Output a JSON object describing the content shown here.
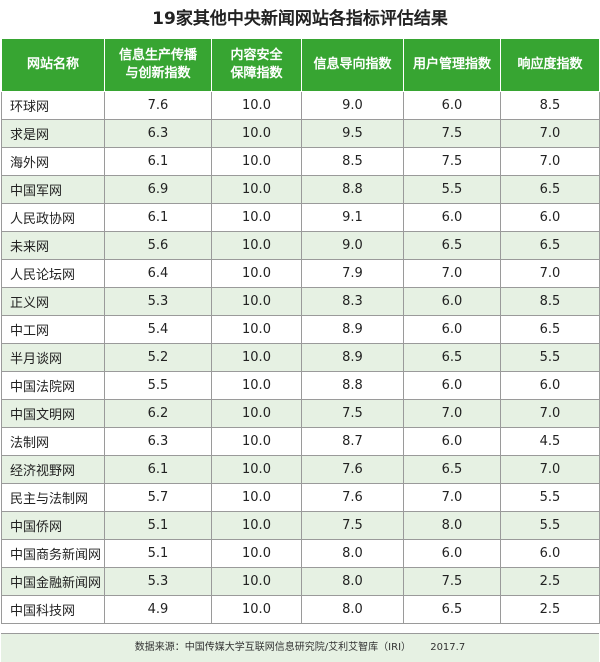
{
  "title": "19家其他中央新闻网站各指标评估结果",
  "columns": [
    "网站名称",
    "信息生产传播与创新指数",
    "内容安全保障指数",
    "信息导向指数",
    "用户管理指数",
    "响应度指数"
  ],
  "column_display": {
    "c0": [
      "网站名称"
    ],
    "c1": [
      "信息生产传播",
      "与创新指数"
    ],
    "c2": [
      "内容安全",
      "保障指数"
    ],
    "c3": [
      "信息导向指数"
    ],
    "c4": [
      "用户管理指数"
    ],
    "c5": [
      "响应度指数"
    ]
  },
  "rows": [
    [
      "环球网",
      "7.6",
      "10.0",
      "9.0",
      "6.0",
      "8.5"
    ],
    [
      "求是网",
      "6.3",
      "10.0",
      "9.5",
      "7.5",
      "7.0"
    ],
    [
      "海外网",
      "6.1",
      "10.0",
      "8.5",
      "7.5",
      "7.0"
    ],
    [
      "中国军网",
      "6.9",
      "10.0",
      "8.8",
      "5.5",
      "6.5"
    ],
    [
      "人民政协网",
      "6.1",
      "10.0",
      "9.1",
      "6.0",
      "6.0"
    ],
    [
      "未来网",
      "5.6",
      "10.0",
      "9.0",
      "6.5",
      "6.5"
    ],
    [
      "人民论坛网",
      "6.4",
      "10.0",
      "7.9",
      "7.0",
      "7.0"
    ],
    [
      "正义网",
      "5.3",
      "10.0",
      "8.3",
      "6.0",
      "8.5"
    ],
    [
      "中工网",
      "5.4",
      "10.0",
      "8.9",
      "6.0",
      "6.5"
    ],
    [
      "半月谈网",
      "5.2",
      "10.0",
      "8.9",
      "6.5",
      "5.5"
    ],
    [
      "中国法院网",
      "5.5",
      "10.0",
      "8.8",
      "6.0",
      "6.0"
    ],
    [
      "中国文明网",
      "6.2",
      "10.0",
      "7.5",
      "7.0",
      "7.0"
    ],
    [
      "法制网",
      "6.3",
      "10.0",
      "8.7",
      "6.0",
      "4.5"
    ],
    [
      "经济视野网",
      "6.1",
      "10.0",
      "7.6",
      "6.5",
      "7.0"
    ],
    [
      "民主与法制网",
      "5.7",
      "10.0",
      "7.6",
      "7.0",
      "5.5"
    ],
    [
      "中国侨网",
      "5.1",
      "10.0",
      "7.5",
      "8.0",
      "5.5"
    ],
    [
      "中国商务新闻网",
      "5.1",
      "10.0",
      "8.0",
      "6.0",
      "6.0"
    ],
    [
      "中国金融新闻网",
      "5.3",
      "10.0",
      "8.0",
      "7.5",
      "2.5"
    ],
    [
      "中国科技网",
      "4.9",
      "10.0",
      "8.0",
      "6.5",
      "2.5"
    ]
  ],
  "footer": {
    "source": "数据来源：中国传媒大学互联网信息研究院/艾利艾智库（IRI）",
    "date": "2017.7"
  },
  "colors": {
    "header_bg": "#37a532",
    "header_text": "#ffffff",
    "row_alt_bg": "#e6f1e3",
    "border": "#9a9a9a"
  }
}
